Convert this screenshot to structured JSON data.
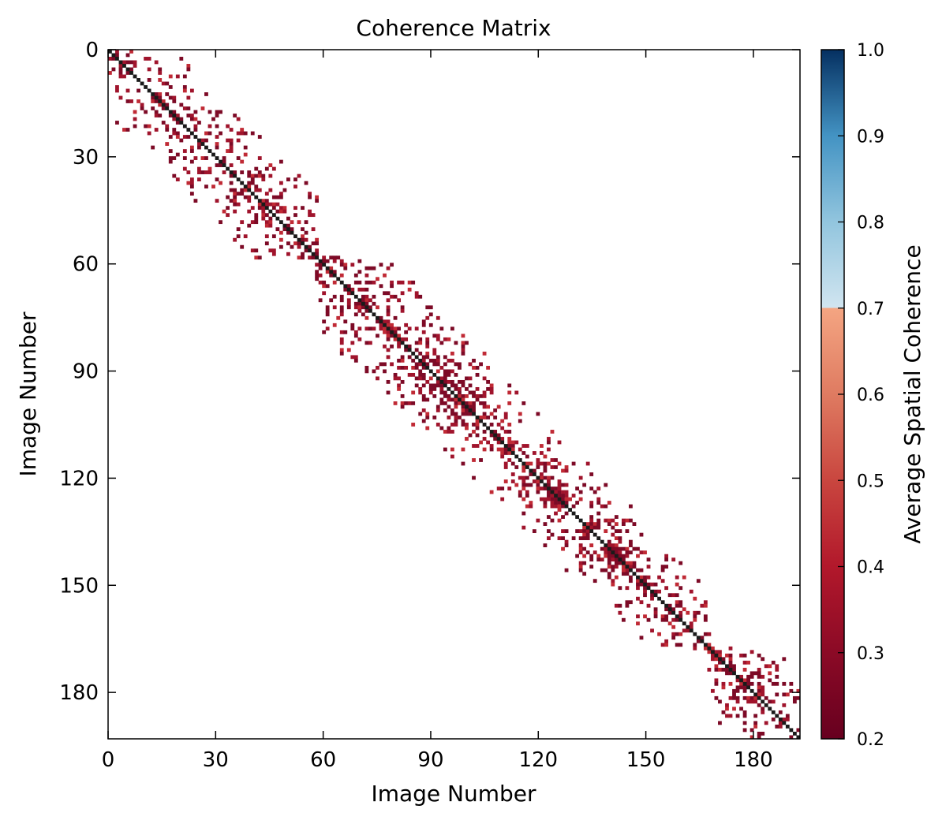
{
  "chart_data": {
    "type": "heatmap",
    "title": "Coherence Matrix",
    "xlabel": "Image Number",
    "ylabel": "Image Number",
    "n_images": 194,
    "xlim": [
      0,
      193
    ],
    "ylim": [
      193,
      0
    ],
    "x_ticks": [
      "0",
      "30",
      "60",
      "90",
      "120",
      "150",
      "180"
    ],
    "y_ticks": [
      "0",
      "30",
      "60",
      "90",
      "120",
      "150",
      "180"
    ],
    "diagonal_value": 1.0,
    "off_diagonal_typical_value": 0.3,
    "blocks": [
      {
        "start": 0,
        "end": 58,
        "bandwidth": 18
      },
      {
        "start": 58,
        "end": 105,
        "bandwidth": 20
      },
      {
        "start": 87,
        "end": 128,
        "bandwidth": 18
      },
      {
        "start": 116,
        "end": 150,
        "bandwidth": 18
      },
      {
        "start": 140,
        "end": 168,
        "bandwidth": 16
      },
      {
        "start": 168,
        "end": 193,
        "bandwidth": 18
      }
    ],
    "colorbar": {
      "label": "Average Spatial Coherence",
      "range": [
        0.2,
        1.0
      ],
      "ticks": [
        "0.2",
        "0.3",
        "0.4",
        "0.5",
        "0.6",
        "0.7",
        "0.8",
        "0.9",
        "1.0"
      ],
      "colormap": "RdBu",
      "threshold": 0.7,
      "stops": [
        {
          "value": 0.2,
          "color": "#67001f"
        },
        {
          "value": 0.3,
          "color": "#8b0a26"
        },
        {
          "value": 0.4,
          "color": "#b2182b"
        },
        {
          "value": 0.5,
          "color": "#c9463f"
        },
        {
          "value": 0.6,
          "color": "#df7b61"
        },
        {
          "value": 0.7,
          "color": "#f4a582"
        },
        {
          "value": 0.7001,
          "color": "#d1e5f0"
        },
        {
          "value": 0.8,
          "color": "#92c5de"
        },
        {
          "value": 0.9,
          "color": "#4393c3"
        },
        {
          "value": 1.0,
          "color": "#053061"
        }
      ]
    },
    "colors": {
      "diagonal": "#1a1a1a",
      "cell_dark": "#7d0a26",
      "cell_mid": "#a0142c",
      "cell_light": "#c02a35"
    }
  }
}
